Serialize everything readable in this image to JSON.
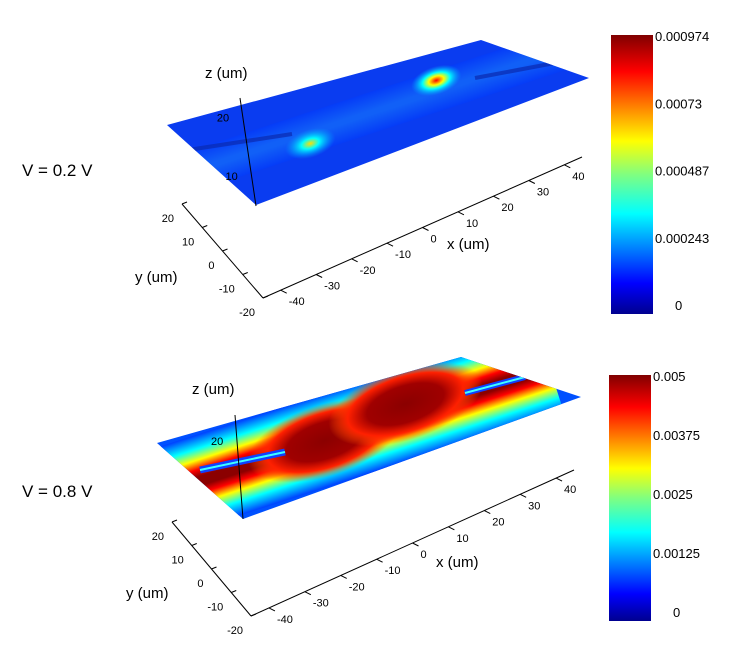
{
  "chart_data": [
    {
      "type": "heatmap",
      "annotation": "V = 0.2 V",
      "xlabel": "x (um)",
      "ylabel": "y (um)",
      "zlabel": "z (um)",
      "x_ticks": [
        "-40",
        "-30",
        "-20",
        "-10",
        "0",
        "10",
        "20",
        "30",
        "40"
      ],
      "y_ticks": [
        "-20",
        "-10",
        "0",
        "10",
        "20"
      ],
      "z_ticks": [
        "10",
        "20"
      ],
      "xlim": [
        -45,
        45
      ],
      "ylim": [
        -20,
        20
      ],
      "colorbar": {
        "ticks": [
          "0.000974",
          "0.00073",
          "0.000487",
          "0.000243",
          "0"
        ],
        "min": 0,
        "max": 0.000974,
        "colormap": "jet"
      },
      "hotspots": [
        {
          "x": -20,
          "y": -5,
          "value": 0.0006
        },
        {
          "x": 20,
          "y": 5,
          "value": 0.0009
        }
      ]
    },
    {
      "type": "heatmap",
      "annotation": "V = 0.8 V",
      "xlabel": "x (um)",
      "ylabel": "y (um)",
      "zlabel": "z (um)",
      "x_ticks": [
        "-40",
        "-30",
        "-20",
        "-10",
        "0",
        "10",
        "20",
        "30",
        "40"
      ],
      "y_ticks": [
        "-20",
        "-10",
        "0",
        "10",
        "20"
      ],
      "z_ticks": [
        "20"
      ],
      "xlim": [
        -45,
        45
      ],
      "ylim": [
        -20,
        20
      ],
      "colorbar": {
        "ticks": [
          "0.005",
          "0.00375",
          "0.0025",
          "0.00125",
          "0"
        ],
        "min": 0,
        "max": 0.005,
        "colormap": "jet"
      },
      "hotspots": [
        {
          "x": -10,
          "y": 0,
          "value": 0.005
        },
        {
          "x": 15,
          "y": 5,
          "value": 0.005
        }
      ]
    }
  ]
}
